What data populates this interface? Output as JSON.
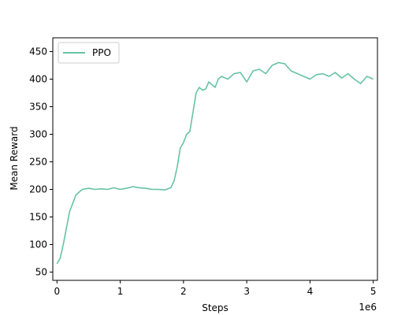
{
  "chart_data": {
    "type": "line",
    "title": "",
    "xlabel": "Steps",
    "ylabel": "Mean Reward",
    "x_offset_label": "1e6",
    "xlim": [
      -0.066,
      5.066
    ],
    "ylim": [
      35,
      475
    ],
    "x_ticks": [
      0,
      1,
      2,
      3,
      4,
      5
    ],
    "x_tick_labels": [
      "0",
      "1",
      "2",
      "3",
      "4",
      "5"
    ],
    "y_ticks": [
      50,
      100,
      150,
      200,
      250,
      300,
      350,
      400,
      450
    ],
    "y_tick_labels": [
      "50",
      "100",
      "150",
      "200",
      "250",
      "300",
      "350",
      "400",
      "450"
    ],
    "grid": false,
    "legend_position": "top-left",
    "series": [
      {
        "name": "PPO",
        "color": "#66c2a5",
        "x": [
          0,
          0.05,
          0.1,
          0.15,
          0.2,
          0.25,
          0.3,
          0.35,
          0.4,
          0.5,
          0.6,
          0.7,
          0.8,
          0.9,
          1.0,
          1.1,
          1.2,
          1.3,
          1.4,
          1.5,
          1.6,
          1.7,
          1.8,
          1.85,
          1.9,
          1.95,
          2.0,
          2.05,
          2.1,
          2.15,
          2.2,
          2.25,
          2.3,
          2.35,
          2.4,
          2.45,
          2.5,
          2.55,
          2.6,
          2.7,
          2.8,
          2.9,
          3.0,
          3.1,
          3.2,
          3.3,
          3.4,
          3.5,
          3.6,
          3.7,
          3.8,
          3.9,
          4.0,
          4.1,
          4.2,
          4.3,
          4.4,
          4.5,
          4.6,
          4.7,
          4.8,
          4.9,
          5.0
        ],
        "y": [
          65,
          75,
          100,
          130,
          160,
          175,
          190,
          195,
          200,
          202,
          200,
          201,
          200,
          203,
          200,
          202,
          205,
          203,
          202,
          200,
          200,
          199,
          203,
          215,
          240,
          275,
          285,
          300,
          305,
          340,
          375,
          385,
          380,
          382,
          395,
          390,
          385,
          400,
          405,
          400,
          410,
          412,
          395,
          415,
          418,
          410,
          425,
          430,
          428,
          415,
          410,
          405,
          400,
          408,
          410,
          405,
          412,
          402,
          410,
          400,
          392,
          405,
          400
        ]
      }
    ]
  }
}
